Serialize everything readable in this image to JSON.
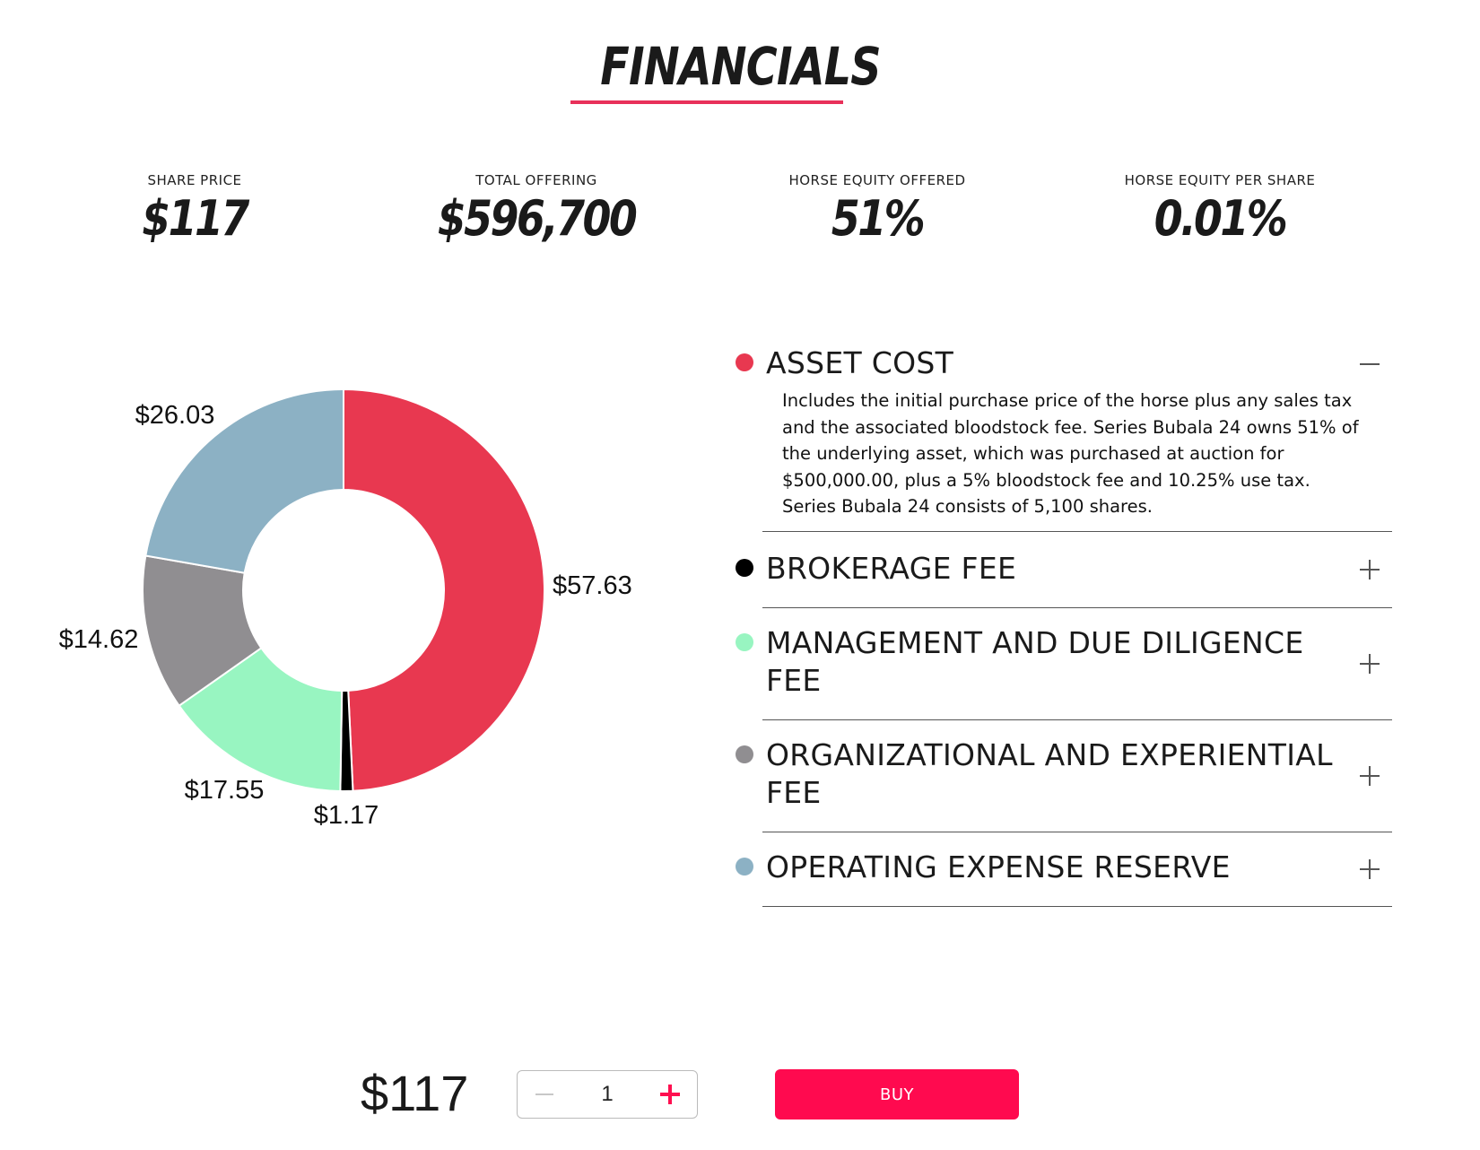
{
  "header": {
    "title": "FINANCIALS",
    "accent_color": "#e8305a"
  },
  "stats": [
    {
      "label": "SHARE PRICE",
      "value": "$117"
    },
    {
      "label": "TOTAL OFFERING",
      "value": "$596,700"
    },
    {
      "label": "HORSE EQUITY OFFERED",
      "value": "51%"
    },
    {
      "label": "HORSE EQUITY PER SHARE",
      "value": "0.01%"
    }
  ],
  "chart_data": {
    "type": "pie",
    "donut": true,
    "slices": [
      {
        "label": "$57.63",
        "value": 57.63,
        "color": "#e83850",
        "category": "ASSET COST"
      },
      {
        "label": "$1.17",
        "value": 1.17,
        "color": "#000000",
        "category": "BROKERAGE FEE"
      },
      {
        "label": "$17.55",
        "value": 17.55,
        "color": "#98f5c1",
        "category": "MANAGEMENT AND DUE DILIGENCE FEE"
      },
      {
        "label": "$14.62",
        "value": 14.62,
        "color": "#908e91",
        "category": "ORGANIZATIONAL AND EXPERIENTIAL FEE"
      },
      {
        "label": "$26.03",
        "value": 26.03,
        "color": "#8cb1c4",
        "category": "OPERATING EXPENSE RESERVE"
      }
    ]
  },
  "accordion": {
    "items": [
      {
        "label": "ASSET COST",
        "dot_color": "#e83850",
        "expanded": true,
        "toggle": "minus",
        "body": "Includes the initial purchase price of the horse plus any sales tax and the associated bloodstock fee. Series Bubala 24 owns 51% of the underlying asset, which was purchased at auction for $500,000.00, plus a 5% bloodstock fee and 10.25% use tax. Series Bubala 24 consists of 5,100 shares."
      },
      {
        "label": "BROKERAGE FEE",
        "dot_color": "#000000",
        "expanded": false,
        "toggle": "plus"
      },
      {
        "label": "MANAGEMENT AND DUE DILIGENCE FEE",
        "dot_color": "#98f5c1",
        "expanded": false,
        "toggle": "plus"
      },
      {
        "label": "ORGANIZATIONAL AND EXPERIENTIAL FEE",
        "dot_color": "#908e91",
        "expanded": false,
        "toggle": "plus"
      },
      {
        "label": "OPERATING EXPENSE RESERVE",
        "dot_color": "#8cb1c4",
        "expanded": false,
        "toggle": "plus"
      }
    ]
  },
  "purchase": {
    "price": "$117",
    "quantity": "1",
    "buy_label": "BUY",
    "buy_color": "#ff0a4f"
  }
}
